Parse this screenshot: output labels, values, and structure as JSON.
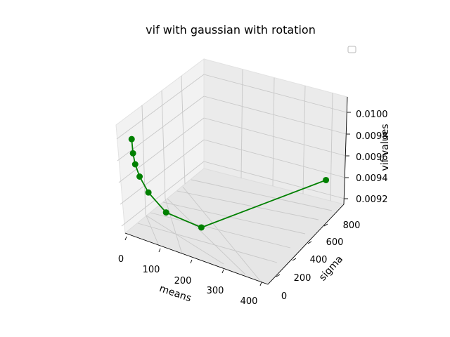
{
  "chart_data": {
    "type": "line",
    "projection": "3d",
    "title": "vif with gaussian with rotation",
    "xlabel": "means",
    "ylabel": "sigma",
    "zlabel": "vif values",
    "xticks": [
      "0",
      "100",
      "200",
      "300",
      "400"
    ],
    "yticks": [
      "0",
      "200",
      "400",
      "600",
      "800"
    ],
    "zticks": [
      "0.0092",
      "0.0094",
      "0.0096",
      "0.0098",
      "0.0100"
    ],
    "xlim": [
      0,
      400
    ],
    "ylim": [
      0,
      900
    ],
    "zlim": [
      0.0091,
      0.0101
    ],
    "grid": true,
    "legend": "top-right (empty)",
    "series": [
      {
        "color": "#008000",
        "marker": "circle",
        "x": [
          2,
          5,
          10,
          20,
          40,
          80,
          160,
          320
        ],
        "y": [
          2,
          5,
          10,
          20,
          40,
          80,
          160,
          960
        ],
        "z": [
          0.00997,
          0.00984,
          0.00974,
          0.00963,
          0.00949,
          0.00932,
          0.00921,
          0.00918
        ]
      }
    ]
  }
}
